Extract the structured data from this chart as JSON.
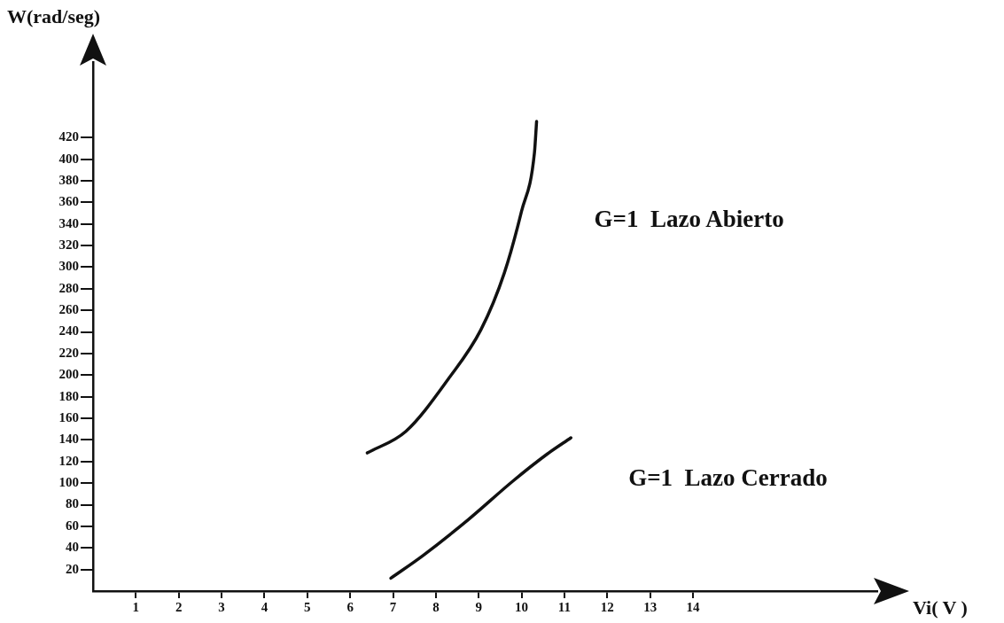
{
  "chart_data": {
    "type": "line",
    "xlabel": "Vi( V )",
    "ylabel": "W(rad/seg)",
    "xlim": [
      0,
      18.3
    ],
    "ylim": [
      0,
      490
    ],
    "xticks": [
      1,
      2,
      3,
      4,
      5,
      6,
      7,
      8,
      9,
      10,
      11,
      12,
      13,
      14
    ],
    "yticks": [
      20,
      40,
      60,
      80,
      100,
      120,
      140,
      160,
      180,
      200,
      220,
      240,
      260,
      280,
      300,
      320,
      340,
      360,
      380,
      400,
      420
    ],
    "grid": false,
    "legend": false,
    "series": [
      {
        "name": "G=1  Lazo Abierto",
        "color": "#111111",
        "x": [
          6.4,
          7.3,
          8.3,
          9.05,
          9.6,
          10.0,
          10.3,
          10.35
        ],
        "values": [
          128,
          148,
          197,
          242,
          295,
          352,
          406,
          435
        ]
      },
      {
        "name": "G=1  Lazo Cerrado",
        "color": "#111111",
        "x": [
          6.95,
          7.7,
          8.75,
          9.8,
          10.6,
          11.15
        ],
        "values": [
          12,
          33,
          66,
          102,
          127,
          142
        ]
      }
    ]
  }
}
